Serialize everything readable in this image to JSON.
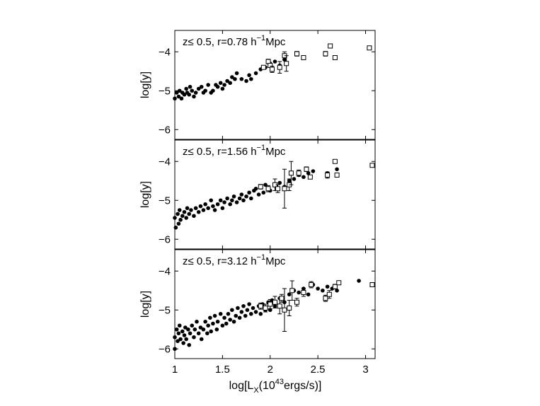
{
  "figure": {
    "xlabel": "log[L",
    "xlabel_sub": "X",
    "xlabel_mid": "(10",
    "xlabel_sup": "43",
    "xlabel_end": "ergs/s)]",
    "x_tick_labels": [
      "1",
      "1.5",
      "2",
      "2.5",
      "3"
    ],
    "y_tick_labels": [
      "−4",
      "−5",
      "−6"
    ]
  },
  "chart_data": [
    {
      "type": "scatter",
      "title_prefix": "z≤ 0.5, r=0.78 h",
      "title_sup": "−1",
      "title_suffix": "Mpc",
      "ylabel": "log[y]",
      "xlim": [
        1,
        3.1
      ],
      "ylim": [
        -6.25,
        -3.45
      ],
      "series": [
        {
          "marker": "filled-circle",
          "points": [
            [
              1.0,
              -5.2
            ],
            [
              1.02,
              -5.05
            ],
            [
              1.04,
              -5.15
            ],
            [
              1.05,
              -5.0
            ],
            [
              1.07,
              -5.2
            ],
            [
              1.08,
              -5.05
            ],
            [
              1.1,
              -5.1
            ],
            [
              1.12,
              -4.95
            ],
            [
              1.13,
              -5.05
            ],
            [
              1.15,
              -5.1
            ],
            [
              1.16,
              -4.9
            ],
            [
              1.18,
              -5.0
            ],
            [
              1.2,
              -5.15
            ],
            [
              1.22,
              -5.05
            ],
            [
              1.25,
              -4.95
            ],
            [
              1.28,
              -4.9
            ],
            [
              1.3,
              -5.05
            ],
            [
              1.32,
              -5.0
            ],
            [
              1.35,
              -4.85
            ],
            [
              1.38,
              -5.05
            ],
            [
              1.4,
              -5.0
            ],
            [
              1.43,
              -4.85
            ],
            [
              1.45,
              -4.9
            ],
            [
              1.48,
              -4.8
            ],
            [
              1.5,
              -4.95
            ],
            [
              1.52,
              -4.85
            ],
            [
              1.55,
              -4.75
            ],
            [
              1.58,
              -4.8
            ],
            [
              1.6,
              -4.65
            ],
            [
              1.63,
              -4.7
            ],
            [
              1.65,
              -4.55
            ],
            [
              1.7,
              -4.7
            ],
            [
              1.75,
              -4.75
            ],
            [
              1.78,
              -4.6
            ],
            [
              1.8,
              -4.7
            ],
            [
              1.85,
              -4.55
            ],
            [
              1.9,
              -4.45
            ],
            [
              1.95,
              -4.4
            ],
            [
              2.0,
              -4.3
            ],
            [
              2.05,
              -4.25
            ],
            [
              2.1,
              -4.35
            ],
            [
              2.15,
              -4.2
            ]
          ]
        },
        {
          "marker": "open-square",
          "points": [
            [
              1.93,
              -4.4,
              0.05
            ],
            [
              1.98,
              -4.25,
              0.06
            ],
            [
              2.0,
              -4.35,
              0.05
            ],
            [
              2.02,
              -4.45,
              0.08
            ],
            [
              2.1,
              -4.4,
              0.15
            ],
            [
              2.15,
              -4.1,
              0.1
            ],
            [
              2.17,
              -4.3,
              0.2
            ],
            [
              2.28,
              -4.05,
              0.06
            ],
            [
              2.35,
              -4.15,
              0.04
            ],
            [
              2.58,
              -4.05,
              0.06
            ],
            [
              2.63,
              -3.85,
              0.04
            ],
            [
              2.68,
              -4.15,
              0.04
            ],
            [
              3.04,
              -3.9,
              0.04
            ]
          ]
        }
      ]
    },
    {
      "type": "scatter",
      "title_prefix": "z≤ 0.5, r=1.56 h",
      "title_sup": "−1",
      "title_suffix": "Mpc",
      "ylabel": "log[y]",
      "xlim": [
        1,
        3.1
      ],
      "ylim": [
        -6.25,
        -3.45
      ],
      "series": [
        {
          "marker": "filled-circle",
          "points": [
            [
              1.0,
              -5.45
            ],
            [
              1.01,
              -5.7
            ],
            [
              1.03,
              -5.35
            ],
            [
              1.04,
              -5.6
            ],
            [
              1.05,
              -5.25
            ],
            [
              1.06,
              -5.5
            ],
            [
              1.08,
              -5.4
            ],
            [
              1.1,
              -5.3
            ],
            [
              1.12,
              -5.45
            ],
            [
              1.13,
              -5.2
            ],
            [
              1.15,
              -5.35
            ],
            [
              1.17,
              -5.25
            ],
            [
              1.2,
              -5.4
            ],
            [
              1.22,
              -5.2
            ],
            [
              1.25,
              -5.3
            ],
            [
              1.27,
              -5.15
            ],
            [
              1.3,
              -5.25
            ],
            [
              1.32,
              -5.1
            ],
            [
              1.35,
              -5.2
            ],
            [
              1.38,
              -5.0
            ],
            [
              1.4,
              -5.15
            ],
            [
              1.42,
              -5.25
            ],
            [
              1.45,
              -5.1
            ],
            [
              1.48,
              -5.0
            ],
            [
              1.5,
              -5.2
            ],
            [
              1.52,
              -5.05
            ],
            [
              1.55,
              -4.95
            ],
            [
              1.58,
              -5.1
            ],
            [
              1.6,
              -5.0
            ],
            [
              1.62,
              -4.9
            ],
            [
              1.65,
              -5.05
            ],
            [
              1.68,
              -4.95
            ],
            [
              1.7,
              -4.85
            ],
            [
              1.72,
              -5.0
            ],
            [
              1.75,
              -4.9
            ],
            [
              1.78,
              -4.8
            ],
            [
              1.8,
              -4.95
            ],
            [
              1.83,
              -4.75
            ],
            [
              1.85,
              -4.7
            ],
            [
              1.88,
              -4.85
            ],
            [
              1.9,
              -4.65
            ],
            [
              1.93,
              -4.8
            ],
            [
              1.95,
              -4.6
            ],
            [
              1.98,
              -4.7
            ],
            [
              2.0,
              -4.75
            ],
            [
              2.05,
              -4.6
            ],
            [
              2.1,
              -4.55
            ],
            [
              2.15,
              -4.65
            ],
            [
              2.2,
              -4.5
            ],
            [
              2.25,
              -4.45
            ],
            [
              2.3,
              -4.35
            ],
            [
              2.35,
              -4.4
            ],
            [
              2.4,
              -4.3
            ],
            [
              2.45,
              -4.25
            ],
            [
              2.6,
              -4.3
            ],
            [
              2.7,
              -4.2
            ]
          ]
        },
        {
          "marker": "open-square",
          "points": [
            [
              1.9,
              -4.65,
              0.06
            ],
            [
              1.98,
              -4.7,
              0.08
            ],
            [
              2.05,
              -4.6,
              0.15
            ],
            [
              2.08,
              -4.7,
              0.1
            ],
            [
              2.15,
              -4.7,
              0.5
            ],
            [
              2.2,
              -4.6,
              0.15
            ],
            [
              2.22,
              -4.3,
              0.3
            ],
            [
              2.3,
              -4.3,
              0.08
            ],
            [
              2.38,
              -4.2,
              0.06
            ],
            [
              2.42,
              -4.4,
              0.04
            ],
            [
              2.6,
              -4.35,
              0.08
            ],
            [
              2.68,
              -4.0,
              0.04
            ],
            [
              2.7,
              -4.35,
              0.05
            ],
            [
              3.07,
              -4.1,
              0.05
            ]
          ]
        }
      ]
    },
    {
      "type": "scatter",
      "title_prefix": "z≤ 0.5, r=3.12 h",
      "title_sup": "−1",
      "title_suffix": "Mpc",
      "ylabel": "log[y]",
      "xlim": [
        1,
        3.1
      ],
      "ylim": [
        -6.25,
        -3.45
      ],
      "series": [
        {
          "marker": "filled-circle",
          "points": [
            [
              1.0,
              -5.7
            ],
            [
              1.0,
              -6.0
            ],
            [
              1.02,
              -5.5
            ],
            [
              1.03,
              -5.8
            ],
            [
              1.04,
              -5.6
            ],
            [
              1.05,
              -5.4
            ],
            [
              1.06,
              -5.75
            ],
            [
              1.08,
              -5.55
            ],
            [
              1.09,
              -5.85
            ],
            [
              1.1,
              -5.65
            ],
            [
              1.11,
              -5.45
            ],
            [
              1.12,
              -5.75
            ],
            [
              1.14,
              -5.5
            ],
            [
              1.15,
              -5.9
            ],
            [
              1.16,
              -5.6
            ],
            [
              1.18,
              -5.4
            ],
            [
              1.2,
              -5.7
            ],
            [
              1.21,
              -5.5
            ],
            [
              1.23,
              -5.3
            ],
            [
              1.25,
              -5.6
            ],
            [
              1.27,
              -5.45
            ],
            [
              1.28,
              -5.75
            ],
            [
              1.3,
              -5.5
            ],
            [
              1.32,
              -5.3
            ],
            [
              1.34,
              -5.6
            ],
            [
              1.35,
              -5.4
            ],
            [
              1.37,
              -5.2
            ],
            [
              1.38,
              -5.55
            ],
            [
              1.4,
              -5.35
            ],
            [
              1.42,
              -5.15
            ],
            [
              1.44,
              -5.5
            ],
            [
              1.45,
              -5.3
            ],
            [
              1.48,
              -5.1
            ],
            [
              1.5,
              -5.4
            ],
            [
              1.52,
              -5.2
            ],
            [
              1.54,
              -5.35
            ],
            [
              1.56,
              -5.1
            ],
            [
              1.58,
              -5.25
            ],
            [
              1.6,
              -5.0
            ],
            [
              1.62,
              -5.3
            ],
            [
              1.64,
              -5.15
            ],
            [
              1.66,
              -4.95
            ],
            [
              1.68,
              -5.2
            ],
            [
              1.7,
              -5.05
            ],
            [
              1.72,
              -4.9
            ],
            [
              1.74,
              -5.15
            ],
            [
              1.76,
              -5.0
            ],
            [
              1.78,
              -4.85
            ],
            [
              1.8,
              -5.1
            ],
            [
              1.82,
              -4.95
            ],
            [
              1.85,
              -5.05
            ],
            [
              1.88,
              -4.9
            ],
            [
              1.9,
              -5.1
            ],
            [
              1.92,
              -4.85
            ],
            [
              1.95,
              -5.0
            ],
            [
              1.98,
              -4.8
            ],
            [
              2.0,
              -5.0
            ],
            [
              2.02,
              -4.75
            ],
            [
              2.05,
              -4.9
            ],
            [
              2.1,
              -4.7
            ],
            [
              2.15,
              -4.8
            ],
            [
              2.2,
              -4.6
            ],
            [
              2.25,
              -4.5
            ],
            [
              2.3,
              -4.55
            ],
            [
              2.35,
              -4.45
            ],
            [
              2.4,
              -4.6
            ],
            [
              2.45,
              -4.35
            ],
            [
              2.5,
              -4.45
            ],
            [
              2.55,
              -4.5
            ],
            [
              2.6,
              -4.4
            ],
            [
              2.65,
              -4.45
            ],
            [
              2.7,
              -4.5
            ],
            [
              2.93,
              -4.25
            ]
          ]
        },
        {
          "marker": "open-square",
          "points": [
            [
              1.9,
              -4.9,
              0.08
            ],
            [
              1.95,
              -4.95,
              0.1
            ],
            [
              2.0,
              -4.85,
              0.12
            ],
            [
              2.05,
              -4.8,
              0.15
            ],
            [
              2.1,
              -4.9,
              0.2
            ],
            [
              2.12,
              -4.7,
              0.1
            ],
            [
              2.15,
              -5.0,
              0.55
            ],
            [
              2.2,
              -4.95,
              0.2
            ],
            [
              2.23,
              -4.5,
              0.25
            ],
            [
              2.28,
              -4.8,
              0.1
            ],
            [
              2.35,
              -4.55,
              0.1
            ],
            [
              2.43,
              -4.35,
              0.08
            ],
            [
              2.58,
              -4.7,
              0.08
            ],
            [
              2.62,
              -4.6,
              0.1
            ],
            [
              2.68,
              -4.4,
              0.06
            ],
            [
              2.72,
              -4.3,
              0.04
            ],
            [
              3.07,
              -4.35,
              0.05
            ]
          ]
        }
      ]
    }
  ]
}
